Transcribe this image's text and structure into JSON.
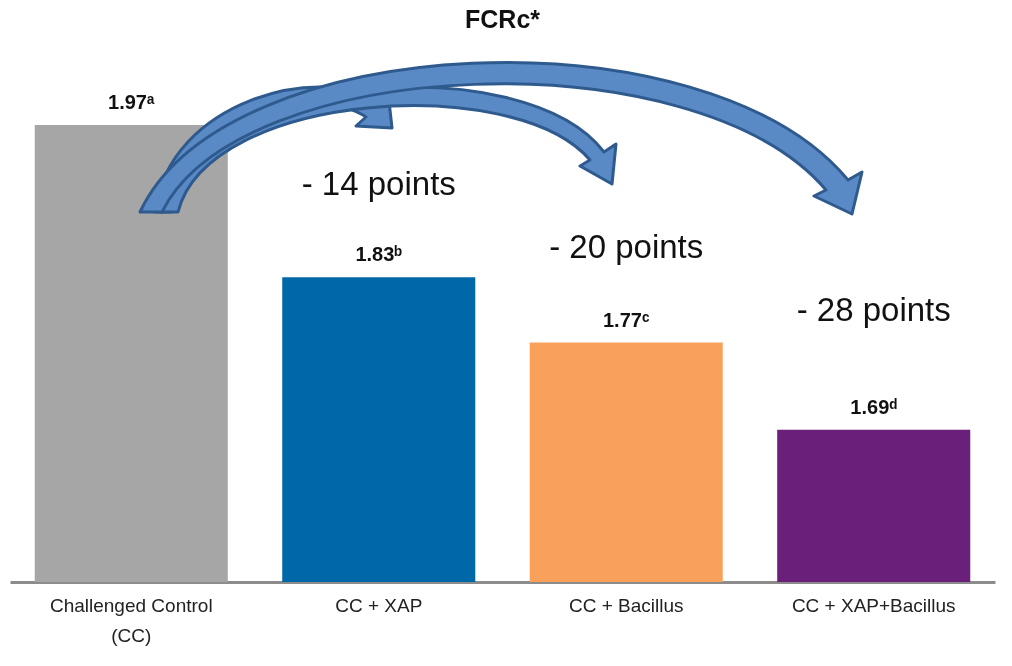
{
  "chart_data": {
    "type": "bar",
    "title": "FCRc*",
    "categories": [
      "Challenged Control (CC)",
      "CC + XAP",
      "CC + Bacillus",
      "CC + XAP+Bacillus"
    ],
    "values": [
      1.97,
      1.83,
      1.77,
      1.69
    ],
    "colors": [
      "#a6a6a6",
      "#0067a9",
      "#f9a15a",
      "#6a1f7a"
    ],
    "value_labels": [
      "1.97ᵃ",
      "1.83ᵇ",
      "1.77ᶜ",
      "1.69ᵈ"
    ],
    "ylim": [
      1.55,
      1.97
    ],
    "annotations": [
      "- 14 points",
      "- 20 points",
      "- 28 points"
    ]
  }
}
